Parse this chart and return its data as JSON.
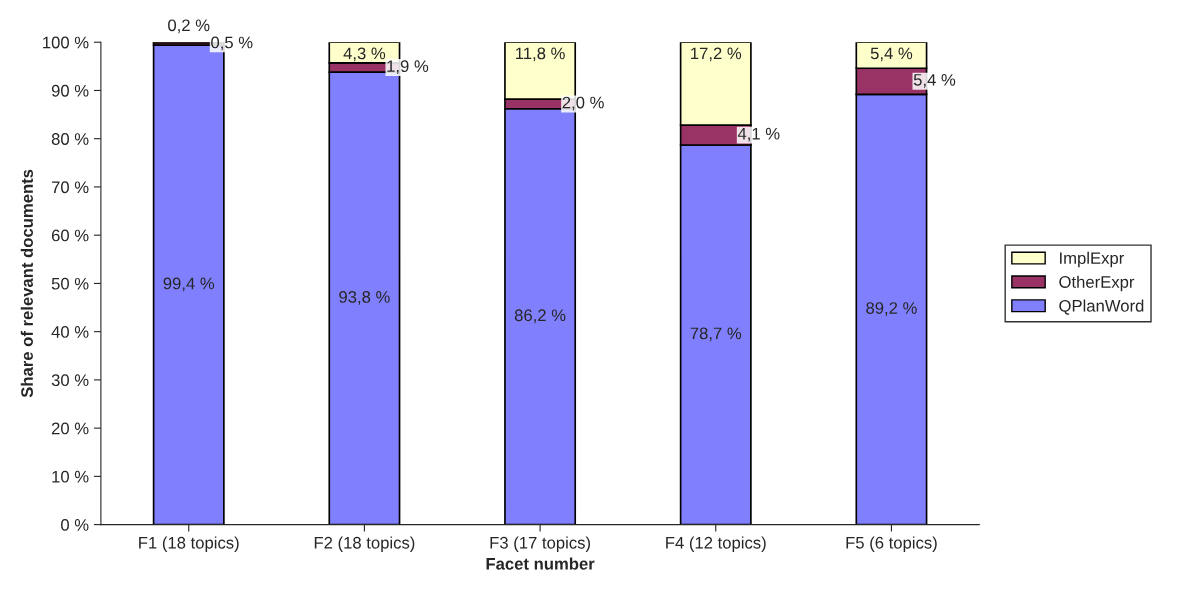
{
  "chart_data": {
    "type": "bar",
    "stacked": true,
    "xlabel": "Facet number",
    "ylabel": "Share of relevant documents",
    "categories": [
      "F1 (18 topics)",
      "F2 (18 topics)",
      "F3 (17 topics)",
      "F4 (12 topics)",
      "F5 (6 topics)"
    ],
    "series": [
      {
        "name": "QPlanWord",
        "color": "#8080ff",
        "values": [
          99.4,
          93.8,
          86.2,
          78.7,
          89.2
        ],
        "value_labels": [
          "99,4 %",
          "93,8 %",
          "86,2 %",
          "78,7 %",
          "89,2 %"
        ]
      },
      {
        "name": "OtherExpr",
        "color": "#993366",
        "values": [
          0.5,
          1.9,
          2.0,
          4.1,
          5.4
        ],
        "value_labels": [
          "0,5 %",
          "1,9 %",
          "2,0 %",
          "4,1 %",
          "5,4 %"
        ]
      },
      {
        "name": "ImplExpr",
        "color": "#ffffcc",
        "values": [
          0.2,
          4.3,
          11.8,
          17.2,
          5.4
        ],
        "value_labels": [
          "0,2 %",
          "4,3 %",
          "11,8 %",
          "17,2 %",
          "5,4 %"
        ]
      }
    ],
    "ylim": [
      0,
      100
    ],
    "yticks": [
      {
        "value": 0,
        "label": "0 %"
      },
      {
        "value": 10,
        "label": "10 %"
      },
      {
        "value": 20,
        "label": "20 %"
      },
      {
        "value": 30,
        "label": "30 %"
      },
      {
        "value": 40,
        "label": "40 %"
      },
      {
        "value": 50,
        "label": "50 %"
      },
      {
        "value": 60,
        "label": "60 %"
      },
      {
        "value": 70,
        "label": "70 %"
      },
      {
        "value": 80,
        "label": "80 %"
      },
      {
        "value": 90,
        "label": "90 %"
      },
      {
        "value": 100,
        "label": "100 %"
      }
    ],
    "grid": false,
    "legend": "right"
  }
}
